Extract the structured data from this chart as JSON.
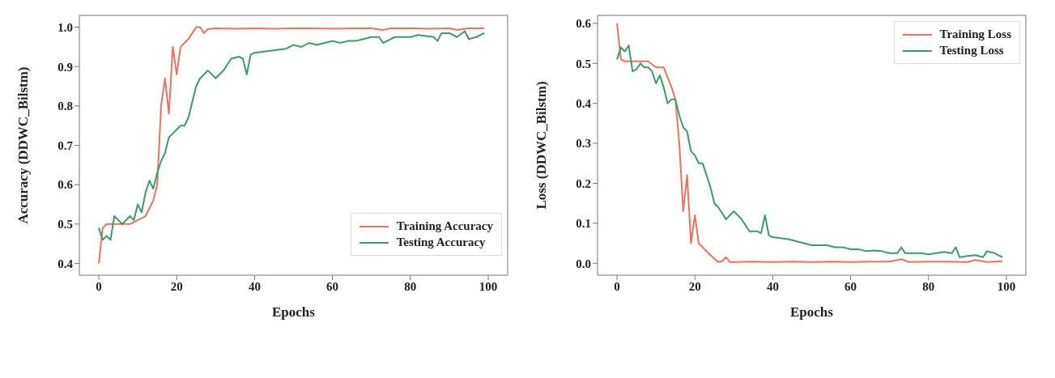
{
  "chart_data": [
    {
      "type": "line",
      "xlabel": "Epochs",
      "ylabel": "Accuracy (DDWC_Bilstm)",
      "xlim": [
        -5,
        105
      ],
      "xticks": [
        0,
        20,
        40,
        60,
        80,
        100
      ],
      "ylim": [
        0.37,
        1.03
      ],
      "yticks": [
        0.4,
        0.5,
        0.6,
        0.7,
        0.8,
        0.9,
        {
          "value": 1,
          "label": "1.0"
        }
      ],
      "legend": "bottom right",
      "series": [
        {
          "name": "Training Accuracy",
          "color": "#e8735f",
          "x": [
            0,
            1,
            2,
            4,
            6,
            8,
            10,
            12,
            13,
            14,
            15,
            16,
            17,
            18,
            19,
            20,
            21,
            23,
            25,
            26,
            27,
            28,
            30,
            35,
            40,
            45,
            50,
            55,
            60,
            65,
            70,
            73,
            75,
            80,
            85,
            90,
            92,
            95,
            99
          ],
          "values": [
            0.4,
            0.49,
            0.5,
            0.5,
            0.5,
            0.5,
            0.51,
            0.52,
            0.54,
            0.56,
            0.6,
            0.8,
            0.87,
            0.78,
            0.95,
            0.88,
            0.95,
            0.97,
            1.0,
            1.0,
            0.985,
            0.995,
            0.997,
            0.996,
            0.997,
            0.996,
            0.997,
            0.997,
            0.996,
            0.997,
            0.997,
            0.993,
            0.997,
            0.997,
            0.996,
            0.997,
            0.993,
            0.997,
            0.997
          ]
        },
        {
          "name": "Testing Accuracy",
          "color": "#3f9a6a",
          "x": [
            0,
            1,
            2,
            3,
            4,
            5,
            6,
            7,
            8,
            9,
            10,
            11,
            12,
            13,
            14,
            15,
            16,
            17,
            18,
            19,
            20,
            21,
            22,
            23,
            24,
            25,
            26,
            28,
            30,
            32,
            34,
            36,
            37,
            38,
            39,
            40,
            44,
            48,
            50,
            52,
            54,
            56,
            58,
            60,
            62,
            64,
            66,
            68,
            70,
            72,
            73,
            76,
            80,
            82,
            86,
            87,
            88,
            90,
            92,
            94,
            95,
            97,
            99
          ],
          "values": [
            0.49,
            0.46,
            0.47,
            0.46,
            0.52,
            0.51,
            0.5,
            0.51,
            0.52,
            0.51,
            0.55,
            0.53,
            0.58,
            0.61,
            0.59,
            0.63,
            0.66,
            0.68,
            0.72,
            0.73,
            0.74,
            0.75,
            0.75,
            0.77,
            0.81,
            0.85,
            0.87,
            0.89,
            0.87,
            0.89,
            0.92,
            0.925,
            0.92,
            0.88,
            0.93,
            0.935,
            0.94,
            0.945,
            0.955,
            0.95,
            0.96,
            0.955,
            0.96,
            0.965,
            0.96,
            0.965,
            0.965,
            0.97,
            0.975,
            0.975,
            0.96,
            0.975,
            0.975,
            0.98,
            0.975,
            0.965,
            0.985,
            0.985,
            0.975,
            0.99,
            0.97,
            0.975,
            0.985
          ]
        }
      ]
    },
    {
      "type": "line",
      "xlabel": "Epochs",
      "ylabel": "Loss (DDWC_Bilstm)",
      "xlim": [
        -5,
        105
      ],
      "xticks": [
        0,
        20,
        40,
        60,
        80,
        100
      ],
      "ylim": [
        -0.03,
        0.62
      ],
      "yticks": [
        {
          "value": 0,
          "label": "0.0"
        },
        0.1,
        0.2,
        0.3,
        0.4,
        0.5,
        0.6
      ],
      "legend": "top right",
      "series": [
        {
          "name": "Training Loss",
          "color": "#e8735f",
          "x": [
            0,
            1,
            2,
            4,
            6,
            8,
            10,
            12,
            14,
            15,
            16,
            17,
            18,
            19,
            20,
            21,
            22,
            24,
            26,
            27,
            28,
            29,
            30,
            35,
            40,
            45,
            50,
            55,
            60,
            65,
            70,
            73,
            75,
            80,
            85,
            90,
            92,
            95,
            99
          ],
          "values": [
            0.6,
            0.51,
            0.505,
            0.505,
            0.505,
            0.505,
            0.49,
            0.49,
            0.44,
            0.41,
            0.3,
            0.13,
            0.22,
            0.05,
            0.12,
            0.05,
            0.04,
            0.02,
            0.003,
            0.005,
            0.015,
            0.003,
            0.003,
            0.004,
            0.003,
            0.004,
            0.003,
            0.004,
            0.003,
            0.004,
            0.004,
            0.01,
            0.003,
            0.004,
            0.004,
            0.003,
            0.008,
            0.003,
            0.005
          ]
        },
        {
          "name": "Testing Loss",
          "color": "#3f9a6a",
          "x": [
            0,
            1,
            2,
            3,
            4,
            5,
            6,
            7,
            8,
            9,
            10,
            11,
            12,
            13,
            14,
            15,
            16,
            17,
            18,
            19,
            20,
            21,
            22,
            23,
            24,
            25,
            26,
            28,
            30,
            32,
            34,
            36,
            37,
            38,
            39,
            40,
            44,
            46,
            48,
            50,
            54,
            56,
            58,
            60,
            62,
            64,
            66,
            68,
            70,
            72,
            73,
            74,
            78,
            80,
            84,
            86,
            87,
            88,
            90,
            92,
            94,
            95,
            97,
            99
          ],
          "values": [
            0.51,
            0.54,
            0.53,
            0.545,
            0.48,
            0.485,
            0.5,
            0.49,
            0.49,
            0.48,
            0.45,
            0.47,
            0.44,
            0.4,
            0.41,
            0.41,
            0.37,
            0.34,
            0.33,
            0.28,
            0.27,
            0.25,
            0.25,
            0.22,
            0.19,
            0.15,
            0.14,
            0.11,
            0.13,
            0.11,
            0.08,
            0.08,
            0.075,
            0.12,
            0.07,
            0.065,
            0.06,
            0.055,
            0.05,
            0.045,
            0.045,
            0.04,
            0.04,
            0.035,
            0.035,
            0.03,
            0.032,
            0.03,
            0.025,
            0.025,
            0.04,
            0.025,
            0.025,
            0.022,
            0.028,
            0.025,
            0.04,
            0.015,
            0.018,
            0.02,
            0.015,
            0.03,
            0.025,
            0.015
          ]
        }
      ]
    }
  ]
}
